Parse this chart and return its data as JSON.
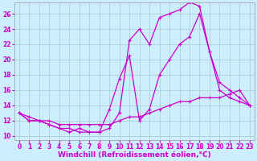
{
  "bg_color": "#cceeff",
  "line_color": "#cc00cc",
  "grid_color": "#aacccc",
  "xlabel": "Windchill (Refroidissement éolien,°C)",
  "xlabel_fontsize": 6.5,
  "tick_fontsize": 5.5,
  "xlim": [
    -0.5,
    23.5
  ],
  "ylim": [
    9.5,
    27.5
  ],
  "xticks": [
    0,
    1,
    2,
    3,
    4,
    5,
    6,
    7,
    8,
    9,
    10,
    11,
    12,
    13,
    14,
    15,
    16,
    17,
    18,
    19,
    20,
    21,
    22,
    23
  ],
  "yticks": [
    10,
    12,
    14,
    16,
    18,
    20,
    22,
    24,
    26
  ],
  "line_flat_x": [
    0,
    1,
    2,
    3,
    4,
    5,
    6,
    7,
    8,
    9,
    10,
    11,
    12,
    13,
    14,
    15,
    16,
    17,
    18,
    19,
    20,
    21,
    22,
    23
  ],
  "line_flat_y": [
    13,
    12.5,
    12,
    12,
    11.5,
    11.5,
    11.5,
    11.5,
    11.5,
    11.5,
    12,
    12.5,
    12.5,
    13,
    13.5,
    14,
    14.5,
    14.5,
    15,
    15,
    15,
    15.5,
    16,
    14
  ],
  "line_high_x": [
    0,
    1,
    2,
    3,
    4,
    5,
    6,
    7,
    8,
    9,
    10,
    11,
    12,
    13,
    14,
    15,
    16,
    17,
    18,
    19,
    20,
    21,
    22,
    23
  ],
  "line_high_y": [
    13,
    12,
    12,
    11.5,
    11,
    11,
    10.5,
    10.5,
    10.5,
    11,
    13,
    22.5,
    24,
    22,
    25.5,
    26,
    26.5,
    27.5,
    27,
    21,
    16,
    15,
    14.5,
    14
  ],
  "line_mid_x": [
    0,
    1,
    2,
    3,
    4,
    5,
    6,
    7,
    8,
    9,
    10,
    11,
    12,
    13,
    14,
    15,
    16,
    17,
    18,
    19,
    20,
    21,
    22,
    23
  ],
  "line_mid_y": [
    13,
    12,
    12,
    11.5,
    11,
    10.5,
    11,
    10.5,
    10.5,
    13.5,
    17.5,
    20.5,
    12,
    13.5,
    18,
    20,
    22,
    23,
    26,
    21,
    17,
    16,
    15,
    14
  ]
}
